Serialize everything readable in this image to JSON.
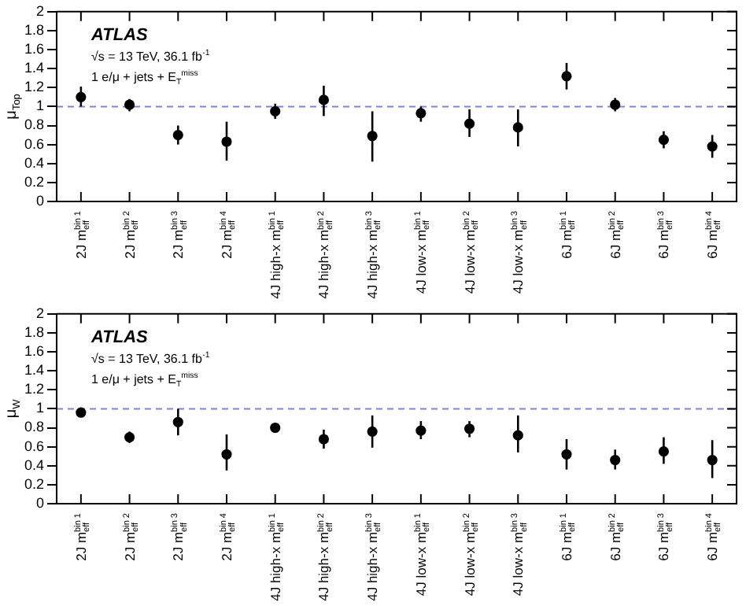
{
  "chart_data": [
    {
      "type": "scatter",
      "ylabel": "μ$_{Top}$",
      "annotations": [
        "ATLAS",
        "√s = 13 TeV, 36.1 fb$^{-1}$",
        "1 e/μ + jets + E$_{T}$$^{miss}$"
      ],
      "categories": [
        "2J m$^{bin 1}$$_{eff}$",
        "2J m$^{bin 2}$$_{eff}$",
        "2J m$^{bin 3}$$_{eff}$",
        "2J m$^{bin 4}$$_{eff}$",
        "4J high-x m$^{bin 1}$$_{eff}$",
        "4J high-x m$^{bin 2}$$_{eff}$",
        "4J high-x m$^{bin 3}$$_{eff}$",
        "4J low-x m$^{bin 1}$$_{eff}$",
        "4J low-x m$^{bin 2}$$_{eff}$",
        "4J low-x m$^{bin 3}$$_{eff}$",
        "6J m$^{bin 1}$$_{eff}$",
        "6J m$^{bin 2}$$_{eff}$",
        "6J m$^{bin 3}$$_{eff}$",
        "6J m$^{bin 4}$$_{eff}$"
      ],
      "values": [
        1.1,
        1.02,
        0.7,
        0.63,
        0.95,
        1.07,
        0.69,
        0.93,
        0.82,
        0.78,
        1.32,
        1.02,
        0.65,
        0.58
      ],
      "errors": [
        [
          1.0,
          1.21
        ],
        [
          0.95,
          1.08
        ],
        [
          0.6,
          0.8
        ],
        [
          0.43,
          0.84
        ],
        [
          0.87,
          1.03
        ],
        [
          0.9,
          1.22
        ],
        [
          0.42,
          0.95
        ],
        [
          0.84,
          1.0
        ],
        [
          0.68,
          0.97
        ],
        [
          0.58,
          0.97
        ],
        [
          1.18,
          1.46
        ],
        [
          0.95,
          1.09
        ],
        [
          0.56,
          0.74
        ],
        [
          0.46,
          0.7
        ]
      ],
      "color": "#000000",
      "marker": "circle",
      "ylim": [
        0,
        2
      ],
      "yticks": [
        0,
        0.2,
        0.4,
        0.6,
        0.8,
        1,
        1.2,
        1.4,
        1.6,
        1.8,
        2
      ],
      "grid": false,
      "legend": false,
      "ref_lines": [
        {
          "axis": "y",
          "value": 1,
          "color": "#8080e0",
          "line_style": "dashed"
        }
      ]
    },
    {
      "type": "scatter",
      "ylabel": "μ$_{W}$",
      "annotations": [
        "ATLAS",
        "√s = 13 TeV, 36.1 fb$^{-1}$",
        "1 e/μ + jets + E$_{T}$$^{miss}$"
      ],
      "categories": [
        "2J m$^{bin 1}$$_{eff}$",
        "2J m$^{bin 2}$$_{eff}$",
        "2J m$^{bin 3}$$_{eff}$",
        "2J m$^{bin 4}$$_{eff}$",
        "4J high-x m$^{bin 1}$$_{eff}$",
        "4J high-x m$^{bin 2}$$_{eff}$",
        "4J high-x m$^{bin 3}$$_{eff}$",
        "4J low-x m$^{bin 1}$$_{eff}$",
        "4J low-x m$^{bin 2}$$_{eff}$",
        "4J low-x m$^{bin 3}$$_{eff}$",
        "6J m$^{bin 1}$$_{eff}$",
        "6J m$^{bin 2}$$_{eff}$",
        "6J m$^{bin 3}$$_{eff}$",
        "6J m$^{bin 4}$$_{eff}$"
      ],
      "values": [
        0.96,
        0.7,
        0.86,
        0.52,
        0.8,
        0.68,
        0.76,
        0.77,
        0.79,
        0.72,
        0.52,
        0.46,
        0.55,
        0.46
      ],
      "errors": [
        [
          0.93,
          0.99
        ],
        [
          0.64,
          0.76
        ],
        [
          0.72,
          1.0
        ],
        [
          0.35,
          0.73
        ],
        [
          0.75,
          0.85
        ],
        [
          0.58,
          0.78
        ],
        [
          0.59,
          0.93
        ],
        [
          0.68,
          0.87
        ],
        [
          0.7,
          0.87
        ],
        [
          0.54,
          0.93
        ],
        [
          0.36,
          0.68
        ],
        [
          0.36,
          0.57
        ],
        [
          0.42,
          0.7
        ],
        [
          0.27,
          0.67
        ]
      ],
      "color": "#000000",
      "marker": "circle",
      "ylim": [
        0,
        2
      ],
      "yticks": [
        0,
        0.2,
        0.4,
        0.6,
        0.8,
        1,
        1.2,
        1.4,
        1.6,
        1.8,
        2
      ],
      "grid": false,
      "legend": false,
      "ref_lines": [
        {
          "axis": "y",
          "value": 1,
          "color": "#8080e0",
          "line_style": "dashed"
        }
      ]
    }
  ]
}
